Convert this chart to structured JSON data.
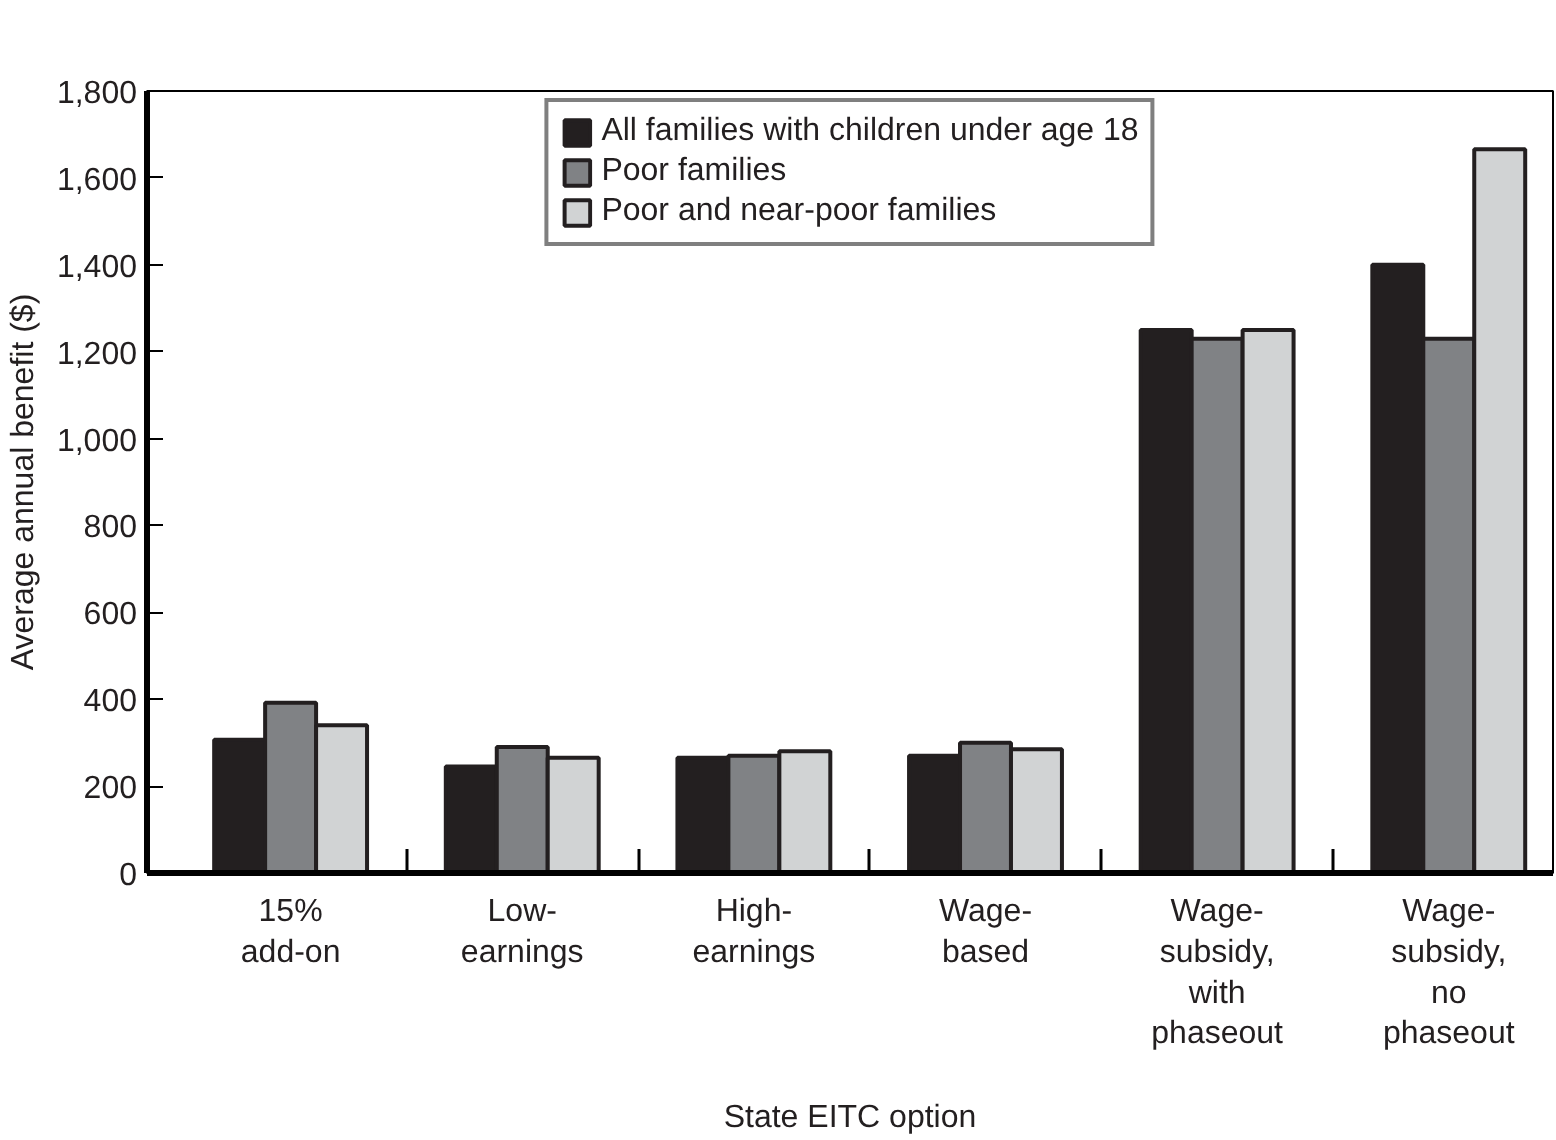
{
  "chart_data": {
    "type": "bar",
    "xlabel": "State EITC option",
    "ylabel": "Average annual benefit ($)",
    "categories": [
      "15%\nadd-on",
      "Low-\nearnings",
      "High-\nearnings",
      "Wage-\nbased",
      "Wage-\nsubsidy,\nwith\nphaseout",
      "Wage-\nsubsidy,\nno\nphaseout"
    ],
    "series": [
      {
        "name": "All families with children under age 18",
        "color": "#231f20",
        "values": [
          307,
          245,
          265,
          270,
          1250,
          1400
        ]
      },
      {
        "name": "Poor families",
        "color": "#808285",
        "values": [
          392,
          290,
          270,
          300,
          1230,
          1230
        ]
      },
      {
        "name": "Poor and near-poor families",
        "color": "#d1d3d4",
        "values": [
          340,
          265,
          280,
          285,
          1250,
          1666
        ]
      }
    ],
    "ylim": [
      0,
      1800
    ],
    "yticks": [
      0,
      {
        "value": 200,
        "label": "200"
      },
      {
        "value": 400,
        "label": "400"
      },
      {
        "value": 600,
        "label": "600"
      },
      {
        "value": 800,
        "label": "800"
      },
      {
        "value": 1000,
        "label": "1,000"
      },
      {
        "value": 1200,
        "label": "1,200"
      },
      {
        "value": 1400,
        "label": "1,400"
      },
      {
        "value": 1600,
        "label": "1,600"
      },
      {
        "value": 1800,
        "label": "1,800"
      }
    ],
    "grid": false,
    "legend": "top"
  }
}
